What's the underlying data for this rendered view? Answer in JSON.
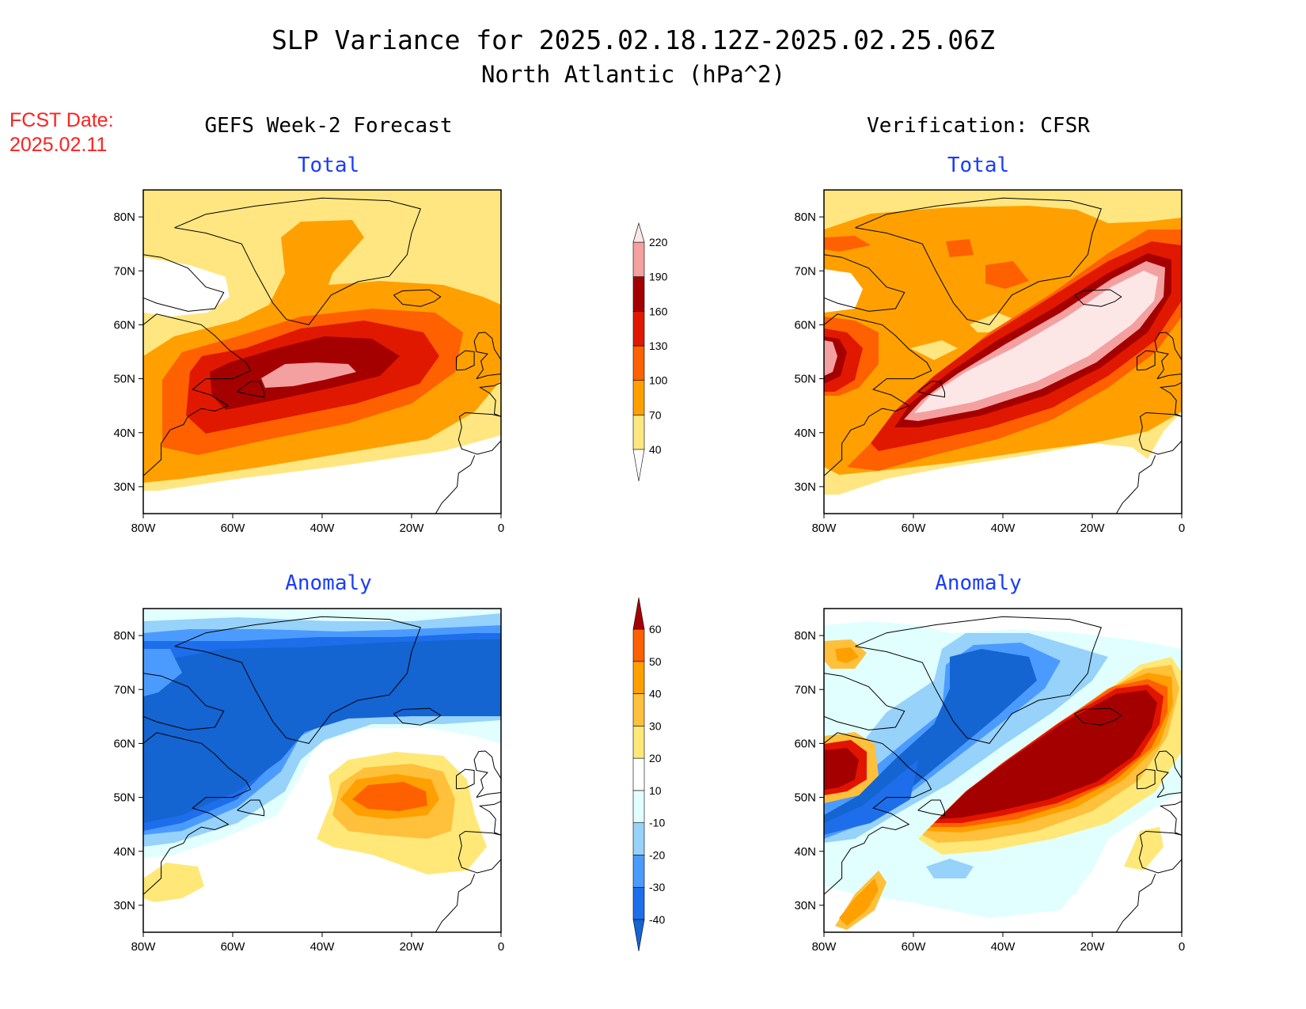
{
  "header": {
    "title_line1": "SLP Variance for 2025.02.18.12Z-2025.02.25.06Z",
    "title_line2": "North Atlantic (hPa^2)",
    "fcst_label": "FCST Date:",
    "fcst_date": "2025.02.11",
    "left_heading": "GEFS Week-2 Forecast",
    "right_heading": "Verification: CFSR"
  },
  "panels": {
    "forecast_total": {
      "label": "Total"
    },
    "verify_total": {
      "label": "Total"
    },
    "forecast_anomaly": {
      "label": "Anomaly"
    },
    "verify_anomaly": {
      "label": "Anomaly"
    }
  },
  "axes": {
    "lat_labels": [
      "80N",
      "70N",
      "60N",
      "50N",
      "40N",
      "30N"
    ],
    "lon_labels": [
      "80W",
      "60W",
      "40W",
      "20W",
      "0"
    ],
    "lat_range": [
      25,
      85
    ],
    "lon_range": [
      -80,
      0
    ]
  },
  "colorbars": {
    "total": {
      "labels": [
        "40",
        "70",
        "100",
        "130",
        "160",
        "190",
        "220"
      ],
      "colors": [
        "#ffe680",
        "#ffa000",
        "#ff6000",
        "#e11800",
        "#a50000",
        "#f4a0a0",
        "#fde6e6"
      ]
    },
    "anomaly": {
      "labels": [
        "-40",
        "-30",
        "-20",
        "-10",
        "10",
        "20",
        "30",
        "40",
        "50",
        "60"
      ],
      "colors": [
        "#1464d2",
        "#1e6eeb",
        "#4b9bff",
        "#96d2fa",
        "#e1ffff",
        "#ffffff",
        "#ffe878",
        "#ffc03c",
        "#ffa000",
        "#ff6000",
        "#e11400",
        "#a50000"
      ]
    }
  }
}
